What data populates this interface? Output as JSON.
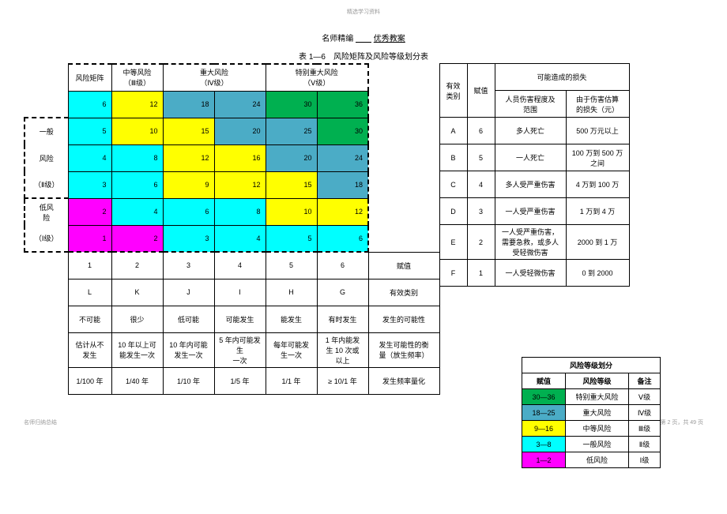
{
  "tiny_header": "精选学习资料",
  "subtitle_a": "名师精编",
  "subtitle_b": "优秀教案",
  "table_title": "表 1—6　风险矩阵及风险等级划分表",
  "colors": {
    "green": "#00b050",
    "teal": "#4bacc6",
    "yellow": "#ffff00",
    "cyan": "#00ffff",
    "magenta": "#ff00ff",
    "white": "#ffffff"
  },
  "headers": {
    "matrix_label": "风险矩阵",
    "level3": "中等风险\n（Ⅲ级）",
    "level4": "重大风险\n（Ⅳ级）",
    "level5": "特别重大风险\n（Ⅴ级）",
    "level2_a": "一般",
    "level2_b": "风险",
    "level2_c": "（Ⅱ级）",
    "level1_a": "低风",
    "level1_b": "险",
    "level1_c": "（Ⅰ级）",
    "eff_cat": "有效\n类别",
    "assign": "赋值",
    "possible_loss": "可能造成的损失",
    "injury_scope": "人员伤害程度及\n范围",
    "loss_est": "由于伤害估算\n的损失（元）"
  },
  "matrix": {
    "row1": {
      "cells": [
        "6",
        "12",
        "18",
        "24",
        "30",
        "36"
      ],
      "colors": [
        "cyan",
        "yellow",
        "teal",
        "teal",
        "green",
        "green"
      ]
    },
    "row2": {
      "cells": [
        "5",
        "10",
        "15",
        "20",
        "25",
        "30"
      ],
      "colors": [
        "cyan",
        "yellow",
        "yellow",
        "teal",
        "teal",
        "green"
      ]
    },
    "row3": {
      "cells": [
        "4",
        "8",
        "12",
        "16",
        "20",
        "24"
      ],
      "colors": [
        "cyan",
        "cyan",
        "yellow",
        "yellow",
        "teal",
        "teal"
      ]
    },
    "row4": {
      "cells": [
        "3",
        "6",
        "9",
        "12",
        "15",
        "18"
      ],
      "colors": [
        "cyan",
        "cyan",
        "yellow",
        "yellow",
        "yellow",
        "teal"
      ]
    },
    "row5": {
      "cells": [
        "2",
        "4",
        "6",
        "8",
        "10",
        "12"
      ],
      "colors": [
        "magenta",
        "cyan",
        "cyan",
        "cyan",
        "yellow",
        "yellow"
      ]
    },
    "row6": {
      "cells": [
        "1",
        "2",
        "3",
        "4",
        "5",
        "6"
      ],
      "colors": [
        "magenta",
        "magenta",
        "cyan",
        "cyan",
        "cyan",
        "cyan"
      ]
    }
  },
  "side_rows": [
    {
      "cat": "A",
      "val": "6",
      "injury": "多人死亡",
      "loss": "500 万元以上"
    },
    {
      "cat": "B",
      "val": "5",
      "injury": "一人死亡",
      "loss": "100 万到 500 万\n之间"
    },
    {
      "cat": "C",
      "val": "4",
      "injury": "多人受严重伤害",
      "loss": "4 万到 100 万"
    },
    {
      "cat": "D",
      "val": "3",
      "injury": "一人受严重伤害",
      "loss": "1 万到 4 万"
    },
    {
      "cat": "E",
      "val": "2",
      "injury": "一人受严重伤害，\n需要急救，或多人\n受轻微伤害",
      "loss": "2000 到 1 万"
    },
    {
      "cat": "F",
      "val": "1",
      "injury": "一人受轻微伤害",
      "loss": "0 到 2000"
    }
  ],
  "bottom": {
    "nums": [
      "1",
      "2",
      "3",
      "4",
      "5",
      "6"
    ],
    "assign": "赋值",
    "letters": [
      "L",
      "K",
      "J",
      "I",
      "H",
      "G"
    ],
    "eff_cat": "有效类别",
    "prob_labels": [
      "不可能",
      "很少",
      "低可能",
      "可能发生",
      "能发生",
      "有时发生"
    ],
    "prob_head": "发生的可能性",
    "prob_desc": [
      "估计从不\n发生",
      "10 年以上可\n能发生一次",
      "10 年内可能\n发生一次",
      "5 年内可能发生\n一次",
      "每年可能发\n生一次",
      "1 年内能发\n生 10 次或\n以上"
    ],
    "prob_desc_head": "发生可能性的衡\n量（放生频率）",
    "freq": [
      "1/100 年",
      "1/40 年",
      "1/10 年",
      "1/5 年",
      "1/1 年",
      "≥ 10/1 年"
    ],
    "freq_head": "发生频率量化"
  },
  "legend": {
    "title": "风险等级划分",
    "cols": [
      "赋值",
      "风险等级",
      "备注"
    ],
    "rows": [
      {
        "range": "30—36",
        "level": "特别重大风险",
        "note": "Ⅴ级",
        "color": "green"
      },
      {
        "range": "18—25",
        "level": "重大风险",
        "note": "Ⅳ级",
        "color": "teal"
      },
      {
        "range": "9—16",
        "level": "中等风险",
        "note": "Ⅲ级",
        "color": "yellow"
      },
      {
        "range": "3—8",
        "level": "一般风险",
        "note": "Ⅱ级",
        "color": "cyan"
      },
      {
        "range": "1—2",
        "level": "低风险",
        "note": "Ⅰ级",
        "color": "magenta"
      }
    ]
  },
  "footer_left": "名师归纳总结",
  "footer_right": "第 2 页，共 49 页"
}
